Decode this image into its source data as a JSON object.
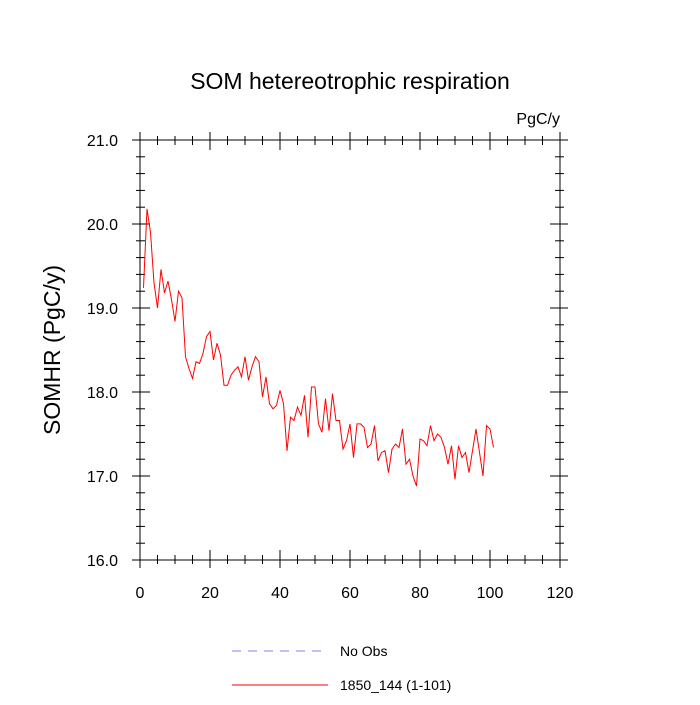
{
  "chart_data": {
    "type": "line",
    "title": "SOM hetereotrophic respiration",
    "units_label": "PgC/y",
    "ylabel": "SOMHR  (PgC/y)",
    "xlabel": "",
    "xlim": [
      0,
      120
    ],
    "ylim": [
      16.0,
      21.0
    ],
    "x_ticks": [
      0,
      20,
      40,
      60,
      80,
      100,
      120
    ],
    "x_tick_labels": [
      "0",
      "20",
      "40",
      "60",
      "80",
      "100",
      "120"
    ],
    "y_ticks": [
      16.0,
      17.0,
      18.0,
      19.0,
      20.0,
      21.0
    ],
    "y_tick_labels": [
      "16.0",
      "17.0",
      "18.0",
      "19.0",
      "20.0",
      "21.0"
    ],
    "grid": false,
    "legend_position": "bottom-center",
    "legend": [
      {
        "label": "No Obs",
        "color": "#8080ff",
        "dash": "dashed"
      },
      {
        "label": "1850_144 (1-101)",
        "color": "#ff0000",
        "dash": "solid"
      }
    ],
    "series": [
      {
        "name": "1850_144 (1-101)",
        "color": "#ff0000",
        "x_start": 1,
        "values": [
          19.24,
          20.18,
          19.9,
          19.3,
          19.0,
          19.46,
          19.18,
          19.32,
          19.1,
          18.84,
          19.2,
          19.12,
          18.42,
          18.28,
          18.16,
          18.36,
          18.34,
          18.46,
          18.66,
          18.72,
          18.38,
          18.58,
          18.44,
          18.08,
          18.08,
          18.2,
          18.26,
          18.3,
          18.18,
          18.42,
          18.14,
          18.3,
          18.42,
          18.36,
          17.94,
          18.18,
          17.86,
          17.8,
          17.84,
          18.02,
          17.86,
          17.3,
          17.7,
          17.66,
          17.82,
          17.72,
          17.96,
          17.46,
          18.06,
          18.06,
          17.62,
          17.52,
          17.92,
          17.54,
          17.98,
          17.66,
          17.66,
          17.32,
          17.42,
          17.62,
          17.22,
          17.62,
          17.62,
          17.58,
          17.34,
          17.38,
          17.6,
          17.18,
          17.28,
          17.3,
          17.04,
          17.32,
          17.38,
          17.34,
          17.56,
          17.14,
          17.2,
          17.0,
          16.88,
          17.44,
          17.42,
          17.36,
          17.6,
          17.42,
          17.5,
          17.46,
          17.34,
          17.14,
          17.36,
          16.96,
          17.36,
          17.22,
          17.28,
          17.04,
          17.3,
          17.56,
          17.28,
          17.0,
          17.6,
          17.56,
          17.34
        ]
      }
    ]
  }
}
